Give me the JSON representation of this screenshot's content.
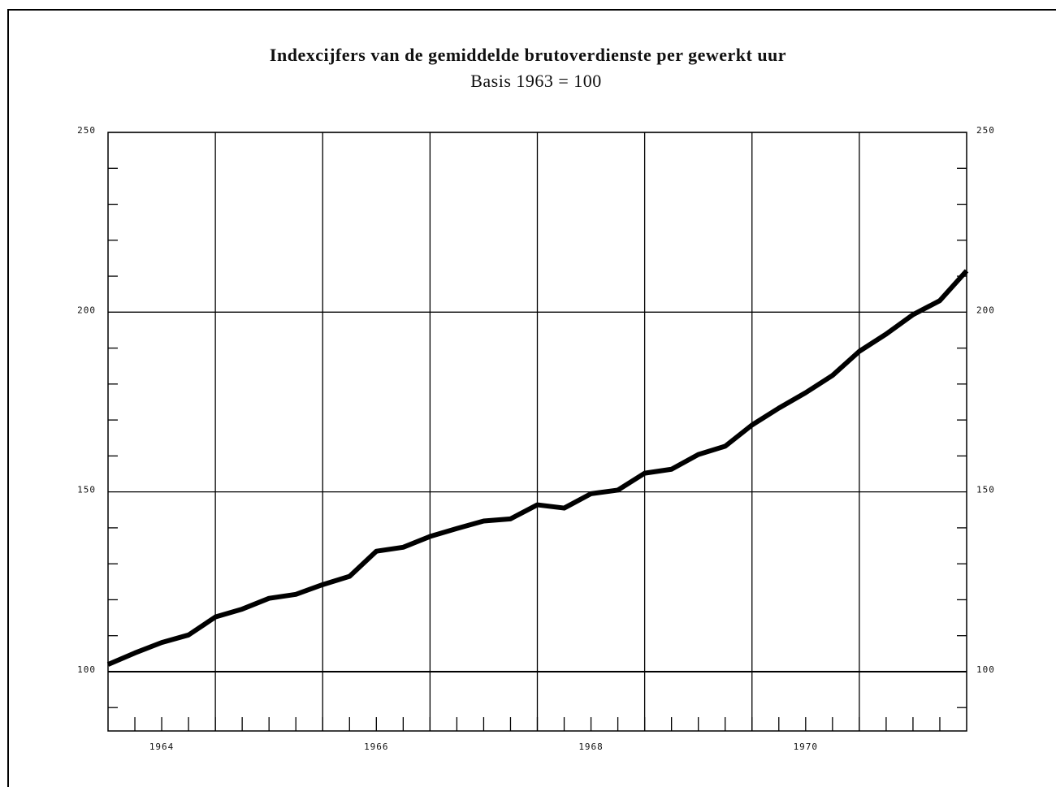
{
  "chart_data": {
    "type": "line",
    "title": "Indexcijfers van de gemiddelde brutoverdienste per gewerkt uur",
    "subtitle": "Basis 1963 = 100",
    "x": [
      1964,
      1964.25,
      1964.5,
      1964.75,
      1965,
      1965.25,
      1965.5,
      1965.75,
      1966,
      1966.25,
      1966.5,
      1966.75,
      1967,
      1967.25,
      1967.5,
      1967.75,
      1968,
      1968.25,
      1968.5,
      1968.75,
      1969,
      1969.25,
      1969.5,
      1969.75,
      1970,
      1970.25,
      1970.5,
      1970.75,
      1971,
      1971.25,
      1971.5,
      1971.75,
      1972
    ],
    "series": [
      {
        "color": "#000000",
        "values": [
          102,
          105.2,
          108.1,
          110.2,
          115.2,
          117.4,
          120.4,
          121.5,
          124.2,
          126.5,
          133.5,
          134.6,
          137.6,
          139.8,
          141.9,
          142.5,
          146.4,
          145.5,
          149.5,
          150.5,
          155.2,
          156.3,
          160.4,
          162.7,
          168.6,
          173.3,
          177.6,
          182.4,
          189.1,
          193.9,
          199.3,
          203.2,
          211.5
        ]
      }
    ],
    "xlim": [
      1964,
      1972
    ],
    "xticks": [
      {
        "value": 1964.5,
        "label": "1964"
      },
      {
        "value": 1966.5,
        "label": "1966"
      },
      {
        "value": 1968.5,
        "label": "1968"
      },
      {
        "value": 1970.5,
        "label": "1970"
      }
    ],
    "x_grid": [
      1965,
      1966,
      1967,
      1968,
      1969,
      1970,
      1971
    ],
    "x_minor_step": 0.25,
    "ylim": [
      83.5,
      250
    ],
    "yticks": [
      100,
      150,
      200,
      250
    ],
    "y_minor_ticks": [
      90,
      110,
      120,
      130,
      140,
      160,
      170,
      180,
      190,
      210,
      220,
      230,
      240
    ],
    "grid": true
  }
}
